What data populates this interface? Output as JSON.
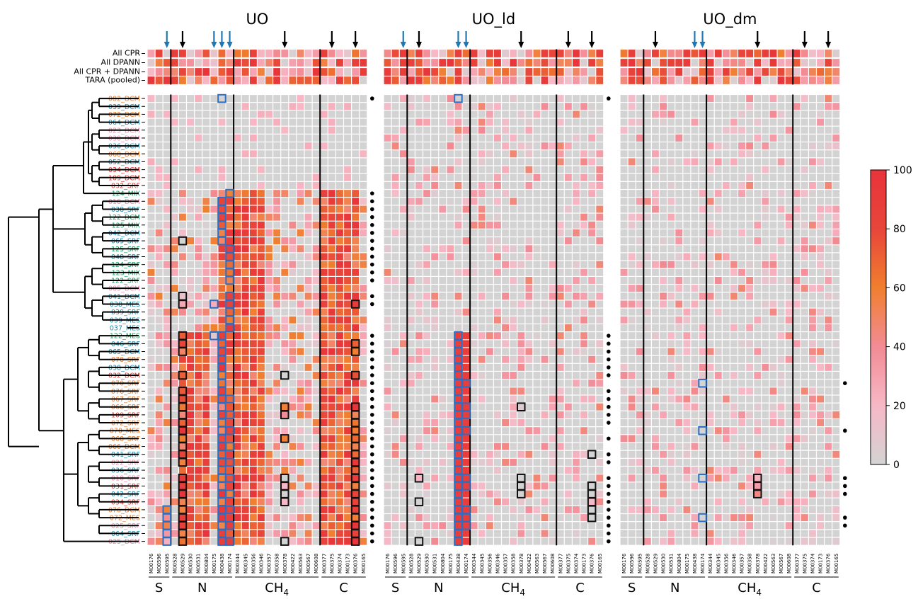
{
  "chart_data": {
    "type": "heatmap",
    "panels": [
      {
        "title": "UO"
      },
      {
        "title": "UO_ld"
      },
      {
        "title": "UO_dm"
      }
    ],
    "modules": [
      "M00176",
      "M00596",
      "M00595",
      "M00528",
      "M00529",
      "M00530",
      "M00531",
      "M00804",
      "M00175",
      "M00438",
      "M00174",
      "M00344",
      "M00345",
      "M00356",
      "M00346",
      "M00357",
      "M00358",
      "M00378",
      "M00422",
      "M00563",
      "M00567",
      "M00608",
      "M00377",
      "M00375",
      "M00374",
      "M00173",
      "M00376",
      "M00165"
    ],
    "groups": [
      {
        "label": "S",
        "start": 0,
        "end": 2
      },
      {
        "label": "N",
        "start": 3,
        "end": 10
      },
      {
        "label": "CH4",
        "start": 11,
        "end": 21
      },
      {
        "label": "C",
        "start": 22,
        "end": 27
      }
    ],
    "summary_rows": [
      "All CPR",
      "All DPANN",
      "All CPR + DPANN",
      "TARA (pooled)"
    ],
    "samples": [
      {
        "name": "082_DCM",
        "color": "#f07f2f"
      },
      {
        "name": "039_DCM",
        "color": "#1b8fb5"
      },
      {
        "name": "072_DCM",
        "color": "#f07f2f"
      },
      {
        "name": "064_DCM",
        "color": "#1b8fb5"
      },
      {
        "name": "023_DCM",
        "color": "#f28bb0"
      },
      {
        "name": "030_DCM",
        "color": "#f28bb0"
      },
      {
        "name": "036_DCM",
        "color": "#1b8fb5"
      },
      {
        "name": "068_DCM",
        "color": "#f07f2f"
      },
      {
        "name": "052_DCM",
        "color": "#1b8fb5"
      },
      {
        "name": "034_DCM",
        "color": "#e5342f"
      },
      {
        "name": "109_DCM",
        "color": "#e5342f"
      },
      {
        "name": "032_SRF",
        "color": "#e5342f"
      },
      {
        "name": "124_MIX",
        "color": "#1aa260"
      },
      {
        "name": "018_DCM",
        "color": "#f28bb0"
      },
      {
        "name": "038_SRF",
        "color": "#1b8fb5"
      },
      {
        "name": "122_DCM",
        "color": "#1aa260"
      },
      {
        "name": "125_MIX",
        "color": "#1aa260"
      },
      {
        "name": "042_DCM",
        "color": "#1b8fb5"
      },
      {
        "name": "065_SRF",
        "color": "#1b8fb5"
      },
      {
        "name": "125_SRF",
        "color": "#1aa260"
      },
      {
        "name": "048_SRF",
        "color": "#1b8fb5"
      },
      {
        "name": "124_SRF",
        "color": "#1aa260"
      },
      {
        "name": "123_MIX",
        "color": "#1aa260"
      },
      {
        "name": "122_SRF",
        "color": "#1aa260"
      },
      {
        "name": "085_DCM",
        "color": "#f28bb0"
      },
      {
        "name": "041_DCM",
        "color": "#1b8fb5"
      },
      {
        "name": "038_MES",
        "color": "#1b8fb5"
      },
      {
        "name": "039_SRF",
        "color": "#1b8fb5"
      },
      {
        "name": "039_MES",
        "color": "#1b8fb5"
      },
      {
        "name": "037_MES",
        "color": "#1b8fb5"
      },
      {
        "name": "122_MES",
        "color": "#1aa260"
      },
      {
        "name": "046_SRF",
        "color": "#1b8fb5"
      },
      {
        "name": "065_DCM",
        "color": "#1b8fb5"
      },
      {
        "name": "078_SRF",
        "color": "#f07f2f"
      },
      {
        "name": "038_DCM",
        "color": "#1b8fb5"
      },
      {
        "name": "032_DCM",
        "color": "#e5342f"
      },
      {
        "name": "070_SRF",
        "color": "#f07f2f"
      },
      {
        "name": "076_SRF",
        "color": "#f07f2f"
      },
      {
        "name": "067_SRF",
        "color": "#f07f2f"
      },
      {
        "name": "066_SRF",
        "color": "#f07f2f"
      },
      {
        "name": "109_SRF",
        "color": "#e5342f"
      },
      {
        "name": "072_SRF",
        "color": "#f07f2f"
      },
      {
        "name": "070_MES",
        "color": "#f07f2f"
      },
      {
        "name": "068_SRF",
        "color": "#f07f2f"
      },
      {
        "name": "066_DCM",
        "color": "#f07f2f"
      },
      {
        "name": "041_SRF",
        "color": "#1b8fb5"
      },
      {
        "name": "022_SRF",
        "color": "#f28bb0"
      },
      {
        "name": "036_SRF",
        "color": "#1b8fb5"
      },
      {
        "name": "018_SRF",
        "color": "#f28bb0"
      },
      {
        "name": "031_SRF",
        "color": "#e5342f"
      },
      {
        "name": "042_SRF",
        "color": "#1b8fb5"
      },
      {
        "name": "034_SRF",
        "color": "#e5342f"
      },
      {
        "name": "076_DCM",
        "color": "#f07f2f"
      },
      {
        "name": "072_MES",
        "color": "#f07f2f"
      },
      {
        "name": "025_SRF",
        "color": "#f28bb0"
      },
      {
        "name": "064_SRF",
        "color": "#1b8fb5"
      },
      {
        "name": "025_DCM",
        "color": "#f28bb0"
      }
    ],
    "colorbar": {
      "min": 0,
      "max": 100,
      "ticks": [
        0,
        20,
        40,
        60,
        80,
        100
      ],
      "stops": [
        "#d3d3d3",
        "#f7b8c6",
        "#f28b95",
        "#f07f2f",
        "#e8453a",
        "#e8343a"
      ]
    },
    "colors": {
      "blue_arrow": "#1f77b4",
      "black_arrow": "#000000",
      "box_blue": "#2a6fc4",
      "box_black": "#111111"
    },
    "arrows": [
      {
        "panel": 0,
        "modules": {
          "blue": [
            2,
            8,
            9,
            10
          ],
          "black": [
            4,
            17,
            23,
            26
          ]
        }
      },
      {
        "panel": 1,
        "modules": {
          "blue": [
            2,
            9,
            10
          ],
          "black": [
            4,
            17,
            23,
            26
          ]
        }
      },
      {
        "panel": 2,
        "modules": {
          "blue": [
            9,
            10
          ],
          "black": [
            4,
            17,
            23,
            26
          ]
        }
      }
    ]
  }
}
